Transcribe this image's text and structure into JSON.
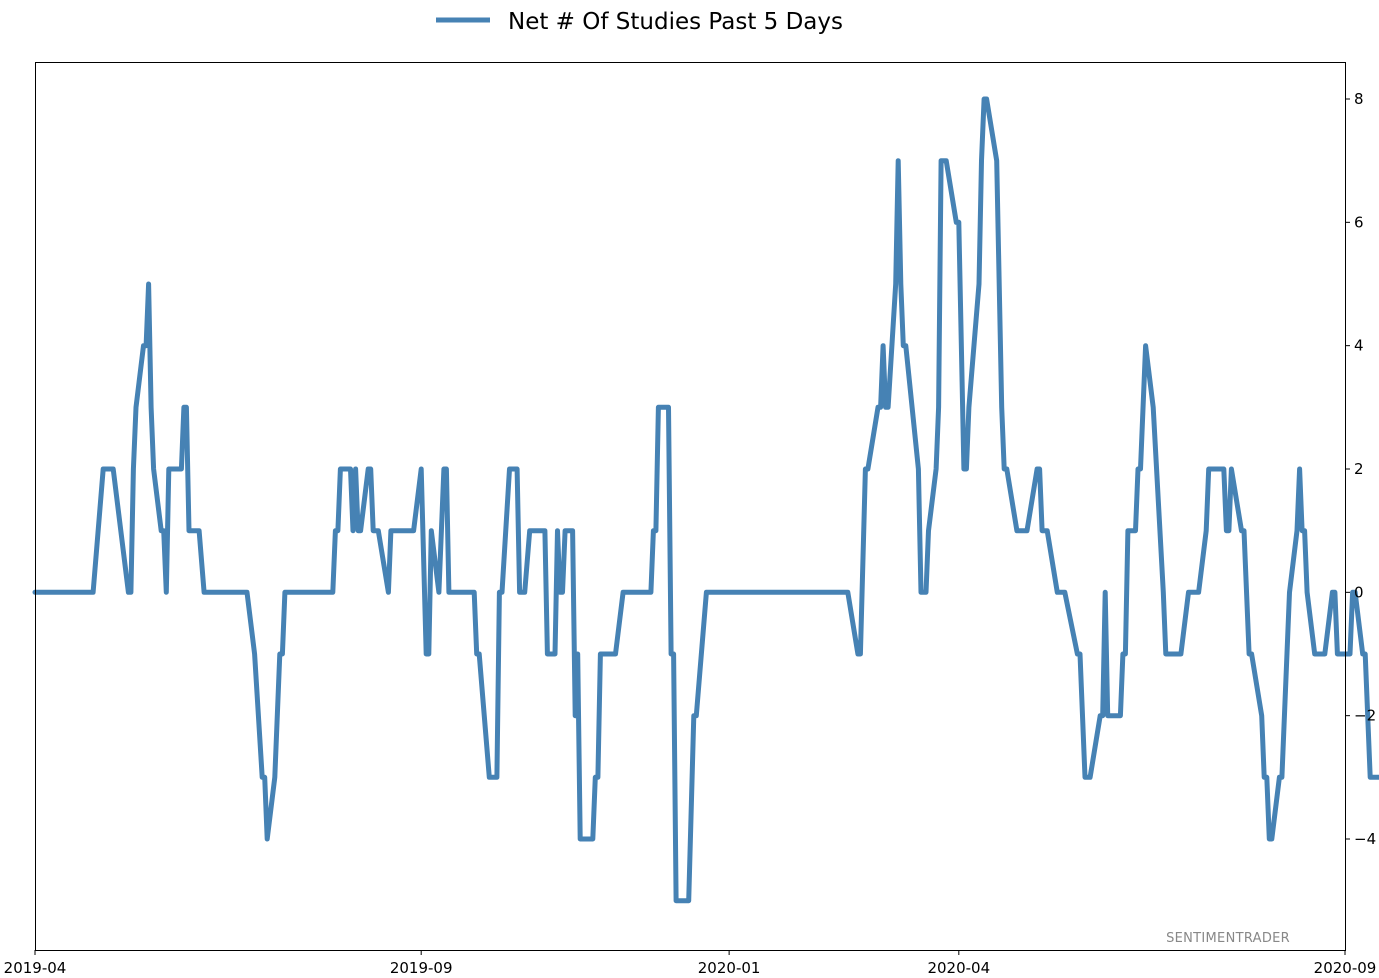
{
  "chart_data": {
    "type": "line",
    "legend": {
      "position": "top-center",
      "entries": [
        "Net # Of Studies Past 5 Days"
      ]
    },
    "watermark": "SENTIMENTRADER",
    "grid": false,
    "y_axis_side": "right",
    "xlim": [
      "2019-04-01",
      "2020-09-01"
    ],
    "ylim": [
      -5.8,
      8.6
    ],
    "x_ticks": [
      {
        "date": "2019-04-01",
        "label": "2019-04"
      },
      {
        "date": "2019-09-01",
        "label": "2019-09"
      },
      {
        "date": "2020-01-01",
        "label": "2020-01"
      },
      {
        "date": "2020-04-01",
        "label": "2020-04"
      },
      {
        "date": "2020-09-01",
        "label": "2020-09"
      }
    ],
    "y_ticks": [
      {
        "value": 8,
        "label": "8"
      },
      {
        "value": 6,
        "label": "6"
      },
      {
        "value": 4,
        "label": "4"
      },
      {
        "value": 2,
        "label": "2"
      },
      {
        "value": 0,
        "label": "0"
      },
      {
        "value": -2,
        "label": "−2"
      },
      {
        "value": -4,
        "label": "−4"
      }
    ],
    "series": [
      {
        "name": "Net # Of Studies Past 5 Days",
        "color": "#4682b4",
        "points": [
          [
            "2019-04-01",
            0
          ],
          [
            "2019-04-24",
            0
          ],
          [
            "2019-04-28",
            2
          ],
          [
            "2019-05-02",
            2
          ],
          [
            "2019-05-08",
            0
          ],
          [
            "2019-05-09",
            0
          ],
          [
            "2019-05-10",
            2
          ],
          [
            "2019-05-11",
            3
          ],
          [
            "2019-05-14",
            4
          ],
          [
            "2019-05-15",
            4
          ],
          [
            "2019-05-16",
            5
          ],
          [
            "2019-05-17",
            3
          ],
          [
            "2019-05-18",
            2
          ],
          [
            "2019-05-21",
            1
          ],
          [
            "2019-05-22",
            1
          ],
          [
            "2019-05-23",
            0
          ],
          [
            "2019-05-24",
            2
          ],
          [
            "2019-05-29",
            2
          ],
          [
            "2019-05-30",
            3
          ],
          [
            "2019-05-31",
            3
          ],
          [
            "2019-06-01",
            1
          ],
          [
            "2019-06-05",
            1
          ],
          [
            "2019-06-07",
            0
          ],
          [
            "2019-06-24",
            0
          ],
          [
            "2019-06-27",
            -1
          ],
          [
            "2019-06-30",
            -3
          ],
          [
            "2019-07-01",
            -3
          ],
          [
            "2019-07-02",
            -4
          ],
          [
            "2019-07-05",
            -3
          ],
          [
            "2019-07-07",
            -1
          ],
          [
            "2019-07-08",
            -1
          ],
          [
            "2019-07-09",
            0
          ],
          [
            "2019-07-28",
            0
          ],
          [
            "2019-07-29",
            1
          ],
          [
            "2019-07-30",
            1
          ],
          [
            "2019-07-31",
            2
          ],
          [
            "2019-08-04",
            2
          ],
          [
            "2019-08-05",
            1
          ],
          [
            "2019-08-06",
            2
          ],
          [
            "2019-08-07",
            1
          ],
          [
            "2019-08-08",
            1
          ],
          [
            "2019-08-11",
            2
          ],
          [
            "2019-08-12",
            2
          ],
          [
            "2019-08-13",
            1
          ],
          [
            "2019-08-15",
            1
          ],
          [
            "2019-08-19",
            0
          ],
          [
            "2019-08-20",
            1
          ],
          [
            "2019-08-29",
            1
          ],
          [
            "2019-09-01",
            2
          ],
          [
            "2019-09-03",
            -1
          ],
          [
            "2019-09-04",
            -1
          ],
          [
            "2019-09-05",
            1
          ],
          [
            "2019-09-08",
            0
          ],
          [
            "2019-09-10",
            2
          ],
          [
            "2019-09-11",
            2
          ],
          [
            "2019-09-12",
            0
          ],
          [
            "2019-09-22",
            0
          ],
          [
            "2019-09-23",
            -1
          ],
          [
            "2019-09-24",
            -1
          ],
          [
            "2019-09-28",
            -3
          ],
          [
            "2019-10-01",
            -3
          ],
          [
            "2019-10-02",
            0
          ],
          [
            "2019-10-03",
            0
          ],
          [
            "2019-10-06",
            2
          ],
          [
            "2019-10-09",
            2
          ],
          [
            "2019-10-10",
            0
          ],
          [
            "2019-10-12",
            0
          ],
          [
            "2019-10-14",
            1
          ],
          [
            "2019-10-20",
            1
          ],
          [
            "2019-10-21",
            -1
          ],
          [
            "2019-10-24",
            -1
          ],
          [
            "2019-10-25",
            1
          ],
          [
            "2019-10-26",
            0
          ],
          [
            "2019-10-27",
            0
          ],
          [
            "2019-10-28",
            1
          ],
          [
            "2019-10-31",
            1
          ],
          [
            "2019-11-01",
            -2
          ],
          [
            "2019-11-02",
            -1
          ],
          [
            "2019-11-03",
            -4
          ],
          [
            "2019-11-08",
            -4
          ],
          [
            "2019-11-09",
            -3
          ],
          [
            "2019-11-10",
            -3
          ],
          [
            "2019-11-11",
            -1
          ],
          [
            "2019-11-17",
            -1
          ],
          [
            "2019-11-20",
            0
          ],
          [
            "2019-12-01",
            0
          ],
          [
            "2019-12-02",
            1
          ],
          [
            "2019-12-03",
            1
          ],
          [
            "2019-12-04",
            3
          ],
          [
            "2019-12-08",
            3
          ],
          [
            "2019-12-09",
            -1
          ],
          [
            "2019-12-10",
            -1
          ],
          [
            "2019-12-11",
            -5
          ],
          [
            "2019-12-16",
            -5
          ],
          [
            "2019-12-18",
            -2
          ],
          [
            "2019-12-19",
            -2
          ],
          [
            "2019-12-23",
            0
          ],
          [
            "2020-02-17",
            0
          ],
          [
            "2020-02-21",
            -1
          ],
          [
            "2020-02-22",
            -1
          ],
          [
            "2020-02-24",
            2
          ],
          [
            "2020-02-25",
            2
          ],
          [
            "2020-02-29",
            3
          ],
          [
            "2020-03-01",
            3
          ],
          [
            "2020-03-02",
            4
          ],
          [
            "2020-03-03",
            3
          ],
          [
            "2020-03-04",
            3
          ],
          [
            "2020-03-07",
            5
          ],
          [
            "2020-03-08",
            7
          ],
          [
            "2020-03-09",
            5
          ],
          [
            "2020-03-10",
            4
          ],
          [
            "2020-03-11",
            4
          ],
          [
            "2020-03-16",
            2
          ],
          [
            "2020-03-17",
            0
          ],
          [
            "2020-03-19",
            0
          ],
          [
            "2020-03-20",
            1
          ],
          [
            "2020-03-23",
            2
          ],
          [
            "2020-03-24",
            3
          ],
          [
            "2020-03-25",
            7
          ],
          [
            "2020-03-27",
            7
          ],
          [
            "2020-03-31",
            6
          ],
          [
            "2020-04-01",
            6
          ],
          [
            "2020-04-03",
            2
          ],
          [
            "2020-04-04",
            2
          ],
          [
            "2020-04-05",
            3
          ],
          [
            "2020-04-09",
            5
          ],
          [
            "2020-04-10",
            7
          ],
          [
            "2020-04-11",
            8
          ],
          [
            "2020-04-12",
            8
          ],
          [
            "2020-04-16",
            7
          ],
          [
            "2020-04-18",
            3
          ],
          [
            "2020-04-19",
            2
          ],
          [
            "2020-04-20",
            2
          ],
          [
            "2020-04-24",
            1
          ],
          [
            "2020-04-28",
            1
          ],
          [
            "2020-05-02",
            2
          ],
          [
            "2020-05-03",
            2
          ],
          [
            "2020-05-04",
            1
          ],
          [
            "2020-05-06",
            1
          ],
          [
            "2020-05-10",
            0
          ],
          [
            "2020-05-13",
            0
          ],
          [
            "2020-05-18",
            -1
          ],
          [
            "2020-05-19",
            -1
          ],
          [
            "2020-05-21",
            -3
          ],
          [
            "2020-05-23",
            -3
          ],
          [
            "2020-05-27",
            -2
          ],
          [
            "2020-05-28",
            -2
          ],
          [
            "2020-05-29",
            0
          ],
          [
            "2020-05-30",
            -2
          ],
          [
            "2020-06-04",
            -2
          ],
          [
            "2020-06-05",
            -1
          ],
          [
            "2020-06-06",
            -1
          ],
          [
            "2020-06-07",
            1
          ],
          [
            "2020-06-10",
            1
          ],
          [
            "2020-06-11",
            2
          ],
          [
            "2020-06-12",
            2
          ],
          [
            "2020-06-14",
            4
          ],
          [
            "2020-06-17",
            3
          ],
          [
            "2020-06-21",
            0
          ],
          [
            "2020-06-22",
            -1
          ],
          [
            "2020-06-28",
            -1
          ],
          [
            "2020-07-01",
            0
          ],
          [
            "2020-07-05",
            0
          ],
          [
            "2020-07-08",
            1
          ],
          [
            "2020-07-09",
            2
          ],
          [
            "2020-07-15",
            2
          ],
          [
            "2020-07-16",
            1
          ],
          [
            "2020-07-17",
            1
          ],
          [
            "2020-07-18",
            2
          ],
          [
            "2020-07-22",
            1
          ],
          [
            "2020-07-23",
            1
          ],
          [
            "2020-07-25",
            -1
          ],
          [
            "2020-07-26",
            -1
          ],
          [
            "2020-07-30",
            -2
          ],
          [
            "2020-07-31",
            -3
          ],
          [
            "2020-08-01",
            -3
          ],
          [
            "2020-08-02",
            -4
          ],
          [
            "2020-08-03",
            -4
          ],
          [
            "2020-08-06",
            -3
          ],
          [
            "2020-08-07",
            -3
          ],
          [
            "2020-08-10",
            0
          ],
          [
            "2020-08-13",
            1
          ],
          [
            "2020-08-14",
            2
          ],
          [
            "2020-08-15",
            1
          ],
          [
            "2020-08-16",
            1
          ],
          [
            "2020-08-17",
            0
          ],
          [
            "2020-08-20",
            -1
          ],
          [
            "2020-08-24",
            -1
          ],
          [
            "2020-08-27",
            0
          ],
          [
            "2020-08-28",
            0
          ],
          [
            "2020-08-29",
            -1
          ],
          [
            "2020-09-03",
            -1
          ],
          [
            "2020-09-04",
            0
          ],
          [
            "2020-09-05",
            0
          ],
          [
            "2020-09-08",
            -1
          ],
          [
            "2020-09-09",
            -1
          ],
          [
            "2020-09-11",
            -3
          ],
          [
            "2020-09-16",
            -3
          ],
          [
            "2020-09-17",
            -2
          ]
        ]
      }
    ]
  }
}
